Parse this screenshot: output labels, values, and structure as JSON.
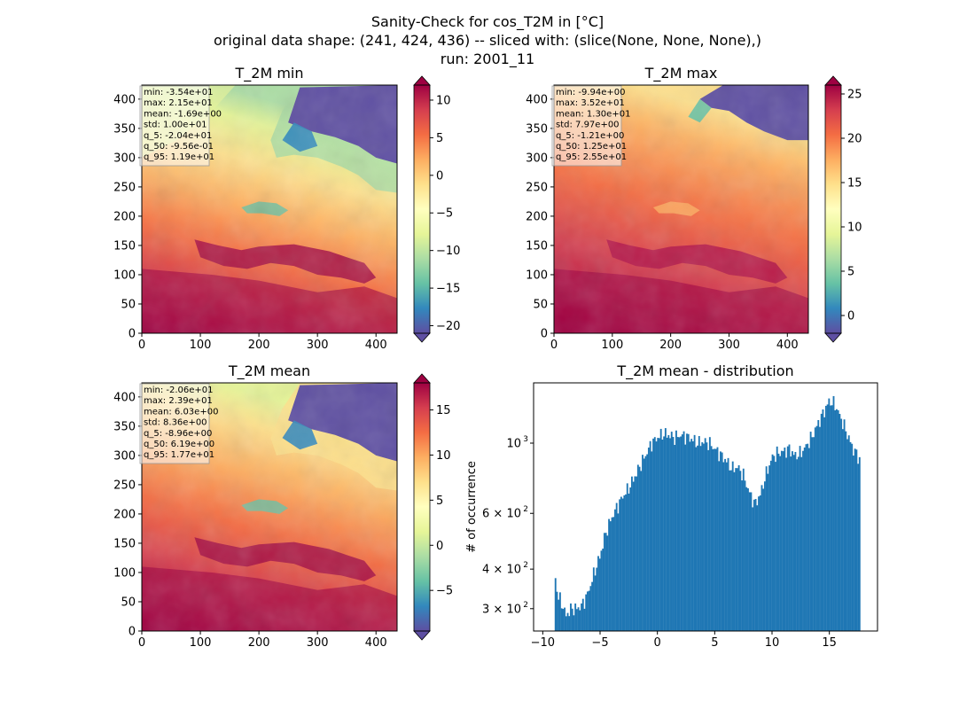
{
  "figure": {
    "title_lines": [
      "Sanity-Check for cos_T2M in [°C]",
      "original data shape: (241, 424, 436) -- sliced with: (slice(None, None, None),)",
      "run: 2001_11"
    ]
  },
  "colors": {
    "bar": "#1f77b4",
    "colormap": [
      "#9e0142",
      "#d53e4f",
      "#f46d43",
      "#fdae61",
      "#fee08b",
      "#ffffbf",
      "#e6f598",
      "#abdda4",
      "#66c2a5",
      "#3288bd",
      "#5e4fa2"
    ]
  },
  "chart_data": [
    {
      "type": "heatmap",
      "title": "T_2M min",
      "xlim": [
        0,
        436
      ],
      "ylim": [
        0,
        424
      ],
      "x_ticks": [
        "0",
        "100",
        "200",
        "300",
        "400"
      ],
      "y_ticks": [
        "0",
        "50",
        "100",
        "150",
        "200",
        "250",
        "300",
        "350",
        "400"
      ],
      "colorbar": {
        "range": [
          -21,
          12
        ],
        "ticks": [
          "10",
          "5",
          "0",
          "−5",
          "−10",
          "−15",
          "−20"
        ],
        "tick_values": [
          10,
          5,
          0,
          -5,
          -10,
          -15,
          -20
        ]
      },
      "stats": [
        "min: -3.54e+01",
        "max: 2.15e+01",
        "mean: -1.69e+00",
        "std: 1.00e+01",
        "q_5: -2.04e+01",
        "q_50: -9.56e-01",
        "q_95: 1.19e+01"
      ]
    },
    {
      "type": "heatmap",
      "title": "T_2M max",
      "xlim": [
        0,
        436
      ],
      "ylim": [
        0,
        424
      ],
      "x_ticks": [
        "0",
        "100",
        "200",
        "300",
        "400"
      ],
      "y_ticks": [
        "0",
        "50",
        "100",
        "150",
        "200",
        "250",
        "300",
        "350",
        "400"
      ],
      "colorbar": {
        "range": [
          -2,
          26
        ],
        "ticks": [
          "25",
          "20",
          "15",
          "10",
          "5",
          "0"
        ],
        "tick_values": [
          25,
          20,
          15,
          10,
          5,
          0
        ]
      },
      "stats": [
        "min: -9.94e+00",
        "max: 3.52e+01",
        "mean: 1.30e+01",
        "std: 7.97e+00",
        "q_5: -1.21e+00",
        "q_50: 1.25e+01",
        "q_95: 2.55e+01"
      ]
    },
    {
      "type": "heatmap",
      "title": "T_2M mean",
      "xlim": [
        0,
        436
      ],
      "ylim": [
        0,
        424
      ],
      "x_ticks": [
        "0",
        "100",
        "200",
        "300",
        "400"
      ],
      "y_ticks": [
        "0",
        "50",
        "100",
        "150",
        "200",
        "250",
        "300",
        "350",
        "400"
      ],
      "colorbar": {
        "range": [
          -9.5,
          18
        ],
        "ticks": [
          "15",
          "10",
          "5",
          "0",
          "−5"
        ],
        "tick_values": [
          15,
          10,
          5,
          0,
          -5
        ]
      },
      "stats": [
        "min: -2.06e+01",
        "max: 2.39e+01",
        "mean: 6.03e+00",
        "std: 8.36e+00",
        "q_5: -8.96e+00",
        "q_50: 6.19e+00",
        "q_95: 1.77e+01"
      ]
    },
    {
      "type": "bar",
      "title": "T_2M mean - distribution",
      "ylabel": "# of occurrence",
      "y_scale": "log",
      "xlim": [
        -10.8,
        19.2
      ],
      "ylim": [
        255,
        1550
      ],
      "x_ticks": [
        "−10",
        "−5",
        "0",
        "5",
        "10",
        "15"
      ],
      "x_tick_values": [
        -10,
        -5,
        0,
        5,
        10,
        15
      ],
      "y_ticks": [
        {
          "base": "3 × 10",
          "exp": "2",
          "value": 300
        },
        {
          "base": "4 × 10",
          "exp": "2",
          "value": 400
        },
        {
          "base": "6 × 10",
          "exp": "2",
          "value": 600
        },
        {
          "base": "10",
          "exp": "3",
          "value": 1000
        }
      ],
      "bins": {
        "start": -8.96,
        "end": 17.7,
        "anchors": [
          [
            -8.96,
            390
          ],
          [
            -8.7,
            330
          ],
          [
            -8.3,
            310
          ],
          [
            -8.0,
            285
          ],
          [
            -7.5,
            300
          ],
          [
            -7.0,
            300
          ],
          [
            -6.5,
            310
          ],
          [
            -6.0,
            340
          ],
          [
            -5.5,
            390
          ],
          [
            -5.0,
            440
          ],
          [
            -4.5,
            520
          ],
          [
            -4.0,
            580
          ],
          [
            -3.5,
            630
          ],
          [
            -3.0,
            680
          ],
          [
            -2.5,
            720
          ],
          [
            -2.0,
            780
          ],
          [
            -1.5,
            850
          ],
          [
            -1.0,
            920
          ],
          [
            -0.5,
            1000
          ],
          [
            0.0,
            1040
          ],
          [
            0.5,
            1070
          ],
          [
            1.0,
            1060
          ],
          [
            1.5,
            1040
          ],
          [
            2.0,
            1060
          ],
          [
            2.5,
            1050
          ],
          [
            3.0,
            1030
          ],
          [
            3.5,
            1000
          ],
          [
            4.0,
            1010
          ],
          [
            4.5,
            1000
          ],
          [
            5.0,
            960
          ],
          [
            5.5,
            920
          ],
          [
            6.0,
            880
          ],
          [
            6.5,
            830
          ],
          [
            7.0,
            840
          ],
          [
            7.5,
            790
          ],
          [
            8.0,
            700
          ],
          [
            8.5,
            640
          ],
          [
            9.0,
            690
          ],
          [
            9.5,
            800
          ],
          [
            10.0,
            900
          ],
          [
            10.5,
            930
          ],
          [
            11.0,
            940
          ],
          [
            11.5,
            960
          ],
          [
            12.0,
            910
          ],
          [
            12.5,
            930
          ],
          [
            13.0,
            980
          ],
          [
            13.5,
            1050
          ],
          [
            14.0,
            1150
          ],
          [
            14.5,
            1250
          ],
          [
            15.0,
            1360
          ],
          [
            15.5,
            1320
          ],
          [
            16.0,
            1200
          ],
          [
            16.5,
            1080
          ],
          [
            17.0,
            970
          ],
          [
            17.7,
            880
          ]
        ]
      }
    }
  ]
}
